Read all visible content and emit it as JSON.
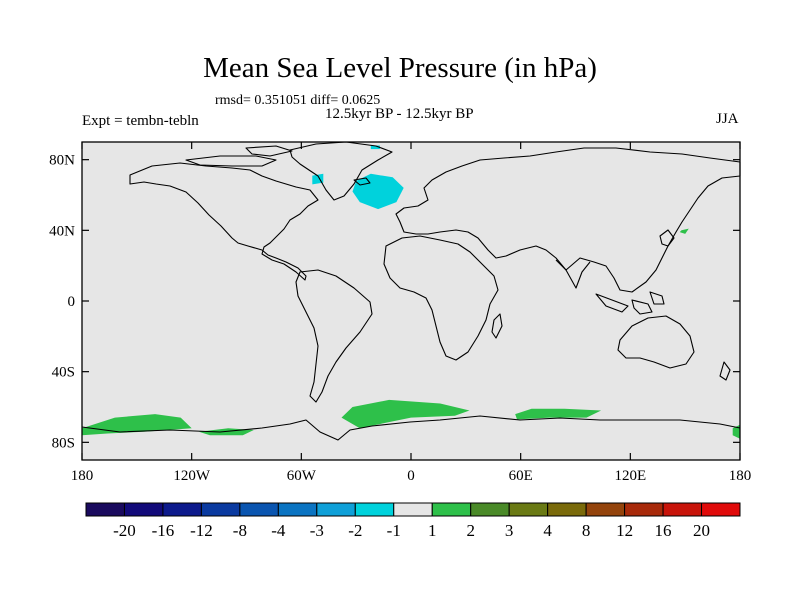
{
  "chart_data": {
    "type": "heatmap",
    "title": "Mean Sea Level Pressure (in hPa)",
    "subtitle": "rmsd= 0.351051 diff= 0.0625",
    "left_label": "Expt = tembn-tebln",
    "center_label": "12.5kyr BP - 12.5kyr BP",
    "right_label": "JJA",
    "xlim": [
      -180,
      180
    ],
    "ylim": [
      -90,
      90
    ],
    "x_ticks": [
      {
        "value": -180,
        "label": "180"
      },
      {
        "value": -120,
        "label": "120W"
      },
      {
        "value": -60,
        "label": "60W"
      },
      {
        "value": 0,
        "label": "0"
      },
      {
        "value": 60,
        "label": "60E"
      },
      {
        "value": 120,
        "label": "120E"
      },
      {
        "value": 180,
        "label": "180"
      }
    ],
    "y_ticks": [
      {
        "value": 80,
        "label": "80N"
      },
      {
        "value": 40,
        "label": "40N"
      },
      {
        "value": 0,
        "label": "0"
      },
      {
        "value": -40,
        "label": "40S"
      },
      {
        "value": -80,
        "label": "80S"
      }
    ],
    "colorbar": {
      "boundaries": [
        "-20",
        "-16",
        "-12",
        "-8",
        "-4",
        "-3",
        "-2",
        "-1",
        "1",
        "2",
        "3",
        "4",
        "8",
        "12",
        "16",
        "20"
      ],
      "colors": [
        "#1a0a5e",
        "#120a7a",
        "#0d1a8c",
        "#0a3aa0",
        "#0a55b0",
        "#0b74c2",
        "#0fa0d8",
        "#00d2dc",
        "#e6e6e6",
        "#2ec04a",
        "#4a8a28",
        "#6a7a14",
        "#7a6a0a",
        "#94440c",
        "#a82a0a",
        "#c8140a",
        "#e00a0a"
      ]
    },
    "background_value_color": "#e6e6e6",
    "anomaly_regions": [
      {
        "label": "-1 to -2",
        "color": "#00d2dc",
        "points": [
          [
            -30,
            68
          ],
          [
            -22,
            72
          ],
          [
            -10,
            70
          ],
          [
            -4,
            64
          ],
          [
            -8,
            56
          ],
          [
            -18,
            52
          ],
          [
            -28,
            56
          ],
          [
            -32,
            62
          ]
        ]
      },
      {
        "label": "-1 to -2",
        "color": "#00d2dc",
        "points": [
          [
            -54,
            71
          ],
          [
            -48,
            72
          ],
          [
            -48,
            67
          ],
          [
            -54,
            66
          ]
        ]
      },
      {
        "label": "-1 to -2",
        "color": "#00d2dc",
        "points": [
          [
            -22,
            88
          ],
          [
            -17,
            88
          ],
          [
            -17,
            86
          ],
          [
            -22,
            86
          ]
        ]
      },
      {
        "label": "1 to 2",
        "color": "#2ec04a",
        "points": [
          [
            -180,
            -72
          ],
          [
            -162,
            -66
          ],
          [
            -140,
            -64
          ],
          [
            -126,
            -66
          ],
          [
            -120,
            -72
          ],
          [
            -146,
            -74
          ],
          [
            -166,
            -75
          ],
          [
            -180,
            -76
          ]
        ]
      },
      {
        "label": "1 to 2",
        "color": "#2ec04a",
        "points": [
          [
            -116,
            -74
          ],
          [
            -100,
            -72
          ],
          [
            -86,
            -73
          ],
          [
            -92,
            -76
          ],
          [
            -110,
            -76
          ]
        ]
      },
      {
        "label": "1 to 2",
        "color": "#2ec04a",
        "points": [
          [
            -32,
            -60
          ],
          [
            -12,
            -56
          ],
          [
            16,
            -58
          ],
          [
            32,
            -62
          ],
          [
            24,
            -65
          ],
          [
            0,
            -66
          ],
          [
            -28,
            -72
          ],
          [
            -38,
            -66
          ]
        ]
      },
      {
        "label": "1 to 2",
        "color": "#2ec04a",
        "points": [
          [
            57,
            -64
          ],
          [
            66,
            -61
          ],
          [
            84,
            -61
          ],
          [
            104,
            -62
          ],
          [
            96,
            -66
          ],
          [
            76,
            -66
          ],
          [
            58,
            -67
          ]
        ]
      },
      {
        "label": "1 to 2",
        "color": "#2ec04a",
        "points": [
          [
            176,
            -72
          ],
          [
            180,
            -70
          ],
          [
            180,
            -78
          ],
          [
            176,
            -76
          ]
        ]
      },
      {
        "label": "1 to 2",
        "color": "#2ec04a",
        "points": [
          [
            148,
            40
          ],
          [
            152,
            41
          ],
          [
            150,
            38
          ],
          [
            147,
            39
          ]
        ]
      }
    ],
    "coastlines_drawn": true
  }
}
